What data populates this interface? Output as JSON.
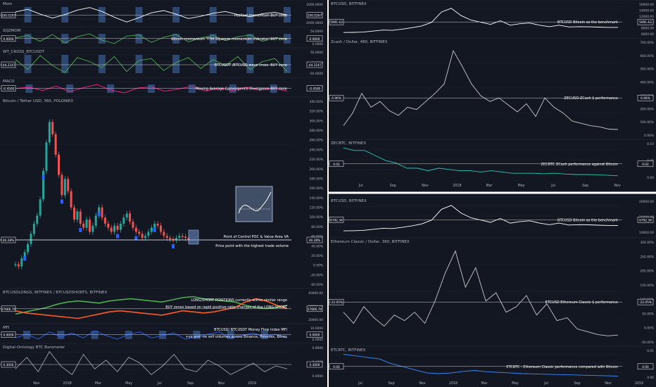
{
  "colors": {
    "bg": "#131722",
    "grid": "#1c2030",
    "divider": "#ffffff",
    "white": "#ffffff",
    "green": "#26a69a",
    "red": "#ef5350",
    "orange": "#ff5a1f",
    "lime": "#4caf50",
    "pink": "#ff1e8c",
    "blue": "#2962ff",
    "teal": "#26c6b4",
    "zone": "rgba(96,160,255,0.65)",
    "label": "#b2b5be"
  },
  "x_axis": {
    "left": [
      "Nov",
      "2018",
      "Mar",
      "May",
      "Jul",
      "Sep",
      "Nov",
      "2019"
    ],
    "right": [
      "Jul",
      "Sep",
      "Nov",
      "2018",
      "Mar",
      "May",
      "Jul",
      "Sep",
      "Nov"
    ],
    "right_bottom": [
      "Jul",
      "Sep",
      "Nov",
      "2018",
      "Mar",
      "May",
      "Jul",
      "Sep",
      "Nov",
      "2019"
    ]
  },
  "chart_data": [
    {
      "id": "mom",
      "type": "line",
      "title": "Mom",
      "annotation": "Positive momentum BUY zone",
      "y_ticks": [
        "2000.0000",
        "0.0000",
        "-2000.0000"
      ],
      "last_value": "100.0267",
      "series": [
        {
          "values": [
            800,
            1400,
            300,
            -600,
            200,
            1200,
            1800,
            900,
            -400,
            -1500,
            -500,
            600,
            1100,
            300,
            -700,
            -200,
            500,
            900,
            200,
            -300,
            400,
            700,
            100
          ]
        }
      ]
    },
    {
      "id": "sqzmom",
      "type": "line",
      "title": "SQZMOM",
      "annotation": "Bitcoin momentum 'TTM Squeeze momentum indicator' BUY zone",
      "y_ticks": [
        "50.0000",
        "0.0000"
      ],
      "last_value": "0.0000",
      "series": [
        {
          "values": [
            10,
            30,
            -20,
            40,
            -35,
            20,
            45,
            -10,
            -40,
            25,
            35,
            -30,
            15,
            40,
            -25,
            10,
            30,
            -15,
            20,
            35,
            -20,
            10,
            5
          ]
        }
      ]
    },
    {
      "id": "wt",
      "type": "line",
      "title": "WT_CROSS_BTCUSDT",
      "annotation": "BTCUSDT /BTCUSD wave cross -BUY zone",
      "y_ticks": [
        "50.0000",
        "0.0000",
        "-50.0000"
      ],
      "last_value": "-44.2147",
      "series": [
        {
          "values": [
            20,
            -30,
            40,
            -10,
            -45,
            30,
            10,
            -20,
            35,
            -40,
            15,
            25,
            -35,
            5,
            30,
            -25,
            20,
            -10,
            35,
            -30,
            10,
            25,
            -40
          ]
        }
      ]
    },
    {
      "id": "macd",
      "type": "line",
      "title": "MACD",
      "annotation": "Moving Average Convergence Divergence BUY zone",
      "y_ticks": [
        "0.0000"
      ],
      "last_value": "-0.4500",
      "series": [
        {
          "values": [
            0.2,
            0.5,
            -0.3,
            0.8,
            -0.6,
            0.4,
            1.2,
            -0.2,
            -0.9,
            0.3,
            0.6,
            -0.5,
            0.1,
            0.7,
            -0.4,
            0.2,
            -0.3,
            0.5,
            -0.2,
            0.3,
            -0.45
          ]
        }
      ]
    },
    {
      "id": "btc-poloniex",
      "type": "line",
      "title": "Bitcoin / Tether USD, 360, POLONIEX",
      "y_label": "%",
      "y_ticks": [
        "340.00%",
        "320.00%",
        "300.00%",
        "280.00%",
        "260.00%",
        "240.00%",
        "220.00%",
        "200.00%",
        "180.00%",
        "160.00%",
        "140.00%",
        "120.00%",
        "100.00%",
        "80.00%",
        "60.00%",
        "40.00%",
        "20.00%",
        "0.00%",
        "-20.00%",
        "-40.00%"
      ],
      "ylim": [
        -40,
        345
      ],
      "last_value": "40.28%",
      "annotations": [
        "Point of Control  POC & Value Area VA",
        "Price point with the highest trade volume"
      ],
      "series": [
        {
          "values": [
            -20,
            -25,
            -5,
            10,
            30,
            55,
            80,
            100,
            140,
            210,
            280,
            330,
            300,
            250,
            200,
            150,
            190,
            160,
            120,
            90,
            110,
            80,
            70,
            90,
            60,
            75,
            100,
            120,
            95,
            80,
            70,
            60,
            75,
            65,
            80,
            95,
            105,
            85,
            70,
            60,
            55,
            45,
            50,
            60,
            70,
            80,
            75,
            60,
            50,
            45,
            42,
            40,
            45,
            50,
            48,
            45,
            40
          ]
        }
      ]
    },
    {
      "id": "longshort",
      "type": "line",
      "title": "BTCUSDLONGS, BITFINEX / BTCUSDSHORTS, BITFINEX",
      "annotations": [
        "LONG/SHORT POSITIONS currently within similar range",
        "BUY zones based on rapid positive ratio changes of the LONG:SHORT"
      ],
      "y_ticks": [
        "40000.00",
        "30000.00",
        "20000.00"
      ],
      "last_value": "27666.70",
      "series": [
        {
          "name": "BTCUSDLONGS, BITFINEX",
          "values": [
            22000,
            24000,
            26000,
            28000,
            31000,
            33000,
            34000,
            33000,
            32000,
            34000,
            35000,
            36000,
            35000,
            34000,
            33000,
            35000,
            37000,
            38000,
            36000,
            35000,
            34000,
            33000,
            30000,
            28000,
            27000,
            28000,
            30000
          ]
        },
        {
          "name": "BTCUSDSHORTS, BITFINEX",
          "values": [
            25000,
            23000,
            22000,
            21000,
            20000,
            19000,
            18000,
            20000,
            22000,
            24000,
            25000,
            24000,
            23000,
            22000,
            21000,
            23000,
            25000,
            24000,
            23000,
            24000,
            26000,
            28000,
            33000,
            36000,
            34000,
            30000,
            27000
          ]
        }
      ]
    },
    {
      "id": "mfi",
      "type": "line",
      "title": "MFI",
      "annotations": [
        "BTCUSD/ BTCUSDT Money Flow Index MFI",
        "+ve and -ve sell volumes across Binance, Poloniex, Bitrex"
      ],
      "y_ticks": [
        "10.0000",
        "0.0000"
      ],
      "last_value": "0.0000",
      "series": [
        {
          "values": [
            3,
            6,
            2,
            8,
            4,
            7,
            3,
            9,
            5,
            2,
            6,
            8,
            3,
            5,
            7,
            2,
            4,
            6,
            8,
            3,
            5,
            7,
            4,
            6,
            3
          ]
        }
      ]
    },
    {
      "id": "barometer",
      "type": "line",
      "title": "Digital-Ontology BTC Barometer",
      "y_ticks": [
        "0.8000",
        "0.4000",
        "0.0000"
      ],
      "last_value": "0.3000",
      "series": [
        {
          "values": [
            0.3,
            0.7,
            0.2,
            0.9,
            0.4,
            0.1,
            0.8,
            0.3,
            0.6,
            0.2,
            0.7,
            0.5,
            0.1,
            0.4,
            0.8,
            0.3,
            0.2,
            0.6,
            0.4,
            0.1,
            0.3,
            0.5,
            0.2,
            0.4,
            0.3
          ]
        }
      ]
    },
    {
      "id": "btcusd-top",
      "type": "line",
      "title": "BTCUSD, BITFINEX",
      "annotation": "BTCUSD Bitcoin as the benchmark",
      "y_ticks": [
        "16000.00",
        "14000.00",
        "12000.00",
        "10000.00",
        "8000.00",
        "6000.00"
      ],
      "last_value": "5991.63",
      "series": [
        {
          "values": [
            2500,
            2600,
            2800,
            3500,
            4200,
            4000,
            4800,
            5800,
            7000,
            9500,
            16500,
            19000,
            14000,
            11000,
            9500,
            8000,
            10500,
            7500,
            8500,
            9000,
            7500,
            6500,
            7500,
            6300,
            6500,
            6400,
            6200,
            6000,
            6000
          ]
        }
      ]
    },
    {
      "id": "zec",
      "type": "line",
      "title": "Zcash / Dollar, 480, BITFINEX",
      "annotation": "ZECUSD-ZCash $ performance",
      "y_ticks": [
        "700.00%",
        "600.00%",
        "500.00%",
        "400.00%",
        "300.00%",
        "200.00%",
        "100.00%",
        "0.00%"
      ],
      "last_value": "6.96%",
      "series": [
        {
          "values": [
            40,
            150,
            320,
            200,
            250,
            170,
            130,
            200,
            180,
            250,
            320,
            400,
            690,
            550,
            400,
            300,
            250,
            280,
            220,
            160,
            230,
            120,
            280,
            200,
            150,
            80,
            60,
            40,
            30,
            10,
            7
          ]
        }
      ]
    },
    {
      "id": "zecbtc",
      "type": "line",
      "title": "ZECBTC, BITFINEX",
      "annotation": "ZECBTC ZCash performance against Bitcoin",
      "y_ticks": [
        "0.10",
        "0.05",
        "0.00"
      ],
      "last_value": "0.02",
      "series": [
        {
          "values": [
            0.13,
            0.12,
            0.12,
            0.1,
            0.08,
            0.07,
            0.05,
            0.05,
            0.04,
            0.05,
            0.045,
            0.04,
            0.04,
            0.035,
            0.04,
            0.035,
            0.03,
            0.03,
            0.03,
            0.028,
            0.03,
            0.027,
            0.025,
            0.025,
            0.024,
            0.022,
            0.02
          ]
        }
      ]
    },
    {
      "id": "btcusd-bottom",
      "type": "line",
      "title": "BTCUSD, BITFINEX",
      "annotation": "BTCUSD Bitcoin as the benchmark",
      "y_ticks": [
        "20000.00",
        "15000.00",
        "10000.00"
      ],
      "last_value": "6792.34",
      "series": [
        {
          "values": [
            2500,
            2600,
            2800,
            3500,
            4200,
            4000,
            4800,
            5800,
            7000,
            9500,
            16500,
            19000,
            14000,
            11000,
            9500,
            8000,
            10500,
            7500,
            8500,
            9000,
            7500,
            6500,
            7500,
            6300,
            6500,
            6400,
            6200,
            6000,
            6000
          ]
        }
      ]
    },
    {
      "id": "etc",
      "type": "line",
      "title": "Ethereum Classic / Dollar, 360, BITFINEX",
      "annotation": "ETCUSD Ethereum Classic $ performance",
      "y_ticks": [
        "300.00%",
        "250.00%",
        "200.00%",
        "150.00%",
        "100.00%",
        "50.00%",
        "0.00%",
        "-50.00%"
      ],
      "last_value": "-22.05%",
      "series": [
        {
          "values": [
            60,
            20,
            80,
            40,
            10,
            50,
            30,
            60,
            20,
            100,
            200,
            280,
            150,
            220,
            100,
            130,
            60,
            80,
            120,
            50,
            90,
            30,
            40,
            0,
            -10,
            -20,
            -25,
            -22
          ]
        }
      ]
    },
    {
      "id": "etcbtc",
      "type": "line",
      "title": "ETCBTC, BITFINEX",
      "annotation": "ETCBTC - Ethereum Classic performance compared with Bitcoin",
      "y_ticks": [
        "0.01",
        "0.00"
      ],
      "last_value": "0.00",
      "series": [
        {
          "values": [
            0.008,
            0.0075,
            0.007,
            0.0065,
            0.005,
            0.004,
            0.003,
            0.002,
            0.0018,
            0.002,
            0.0025,
            0.0028,
            0.0024,
            0.0022,
            0.002,
            0.0018,
            0.0017,
            0.0016,
            0.0015,
            0.0014,
            0.0013,
            0.0012,
            0.0011,
            0.001
          ]
        }
      ]
    }
  ]
}
